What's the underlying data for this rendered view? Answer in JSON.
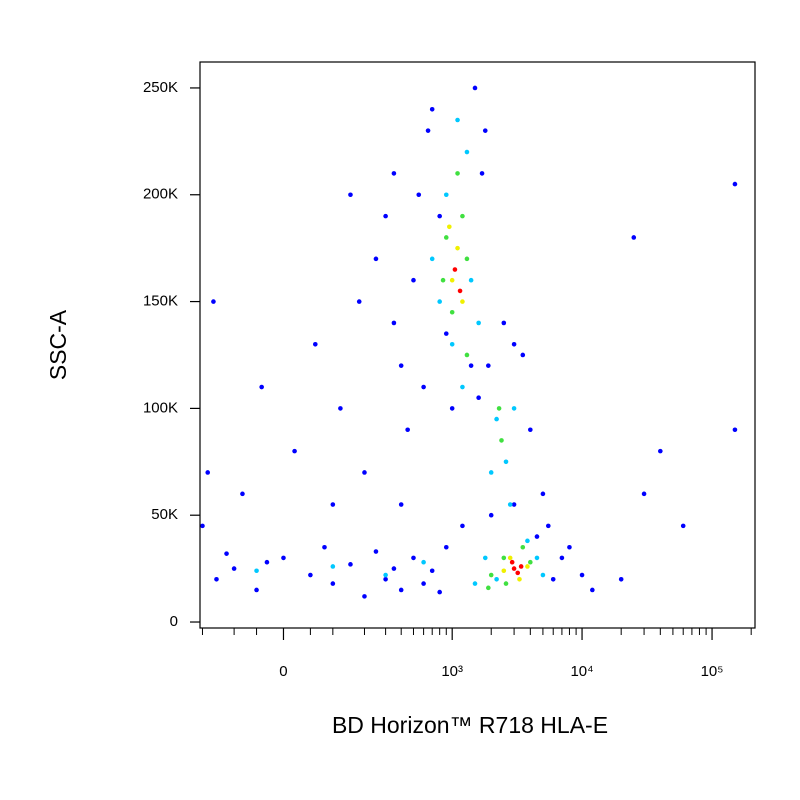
{
  "chart_data": {
    "type": "scatter",
    "x_label": "BD Horizon™ R718 HLA-E",
    "y_label": "SSC-A",
    "xscale": {
      "type": "arcsinh",
      "cofactor": 101
    },
    "xlim": [
      -210,
      214000
    ],
    "ylim": [
      -2800,
      262144
    ],
    "xticks": [
      {
        "value": 0,
        "label": "0"
      },
      {
        "value": 1000,
        "label": "10³"
      },
      {
        "value": 10000,
        "label": "10⁴"
      },
      {
        "value": 100000,
        "label": "10⁵"
      }
    ],
    "xminorticks": [
      -200,
      -100,
      -50,
      50,
      100,
      200,
      300,
      400,
      500,
      600,
      700,
      800,
      900,
      2000,
      3000,
      4000,
      5000,
      6000,
      7000,
      8000,
      9000,
      20000,
      30000,
      40000,
      50000,
      60000,
      70000,
      80000,
      90000,
      200000
    ],
    "yticks": [
      {
        "value": 0,
        "label": "0"
      },
      {
        "value": 50000,
        "label": "50K"
      },
      {
        "value": 100000,
        "label": "100K"
      },
      {
        "value": 150000,
        "label": "150K"
      },
      {
        "value": 200000,
        "label": "200K"
      },
      {
        "value": 250000,
        "label": "250K"
      }
    ],
    "series": [
      {
        "color": "#0000ff",
        "x": [
          -150,
          -100,
          -50,
          0,
          50,
          100,
          150,
          200,
          250,
          300,
          350,
          400,
          -120,
          -30,
          80,
          500,
          600,
          700,
          800,
          900,
          -80,
          20,
          120,
          60,
          180,
          250,
          300,
          350,
          400,
          450,
          200,
          100,
          -40,
          150,
          350,
          500,
          550,
          600,
          650,
          700,
          1500,
          1800,
          1400,
          1600,
          1900,
          3500,
          4000,
          5000,
          5500,
          7000,
          8000,
          6000,
          10000,
          12000,
          20000,
          40000,
          60000,
          150000,
          150000,
          30000,
          25000,
          -200,
          -180,
          -160,
          400,
          1200,
          2000,
          1000,
          3000,
          1700,
          800,
          900,
          3000,
          4500,
          2500
        ],
        "values": [
          20000,
          25000,
          15000,
          30000,
          22000,
          18000,
          27000,
          12000,
          33000,
          20000,
          25000,
          15000,
          32000,
          28000,
          35000,
          30000,
          18000,
          24000,
          14000,
          35000,
          60000,
          80000,
          100000,
          130000,
          150000,
          170000,
          190000,
          140000,
          120000,
          90000,
          70000,
          55000,
          110000,
          200000,
          210000,
          160000,
          200000,
          110000,
          230000,
          240000,
          250000,
          230000,
          120000,
          105000,
          120000,
          125000,
          90000,
          60000,
          45000,
          30000,
          35000,
          20000,
          22000,
          15000,
          20000,
          80000,
          45000,
          90000,
          205000,
          60000,
          180000,
          45000,
          70000,
          150000,
          55000,
          45000,
          50000,
          100000,
          130000,
          210000,
          190000,
          135000,
          55000,
          40000,
          140000
        ]
      },
      {
        "color": "#00c8ff",
        "x": [
          900,
          1300,
          1000,
          1400,
          700,
          1100,
          2200,
          2600,
          3000,
          2000,
          2800,
          1800,
          2200,
          4500,
          5000,
          1500,
          3800,
          1200,
          1600,
          800,
          -50,
          100,
          300,
          600
        ],
        "values": [
          200000,
          220000,
          130000,
          160000,
          170000,
          235000,
          95000,
          75000,
          100000,
          70000,
          55000,
          30000,
          20000,
          30000,
          22000,
          18000,
          38000,
          110000,
          140000,
          150000,
          24000,
          26000,
          22000,
          28000
        ]
      },
      {
        "color": "#40e040",
        "x": [
          900,
          1200,
          1000,
          1300,
          1100,
          850,
          2400,
          2300,
          2000,
          2600,
          4000,
          3500,
          2500,
          1900,
          1300
        ],
        "values": [
          180000,
          190000,
          145000,
          170000,
          210000,
          160000,
          85000,
          100000,
          22000,
          18000,
          28000,
          35000,
          30000,
          16000,
          125000
        ]
      },
      {
        "color": "#f0f000",
        "x": [
          1000,
          1100,
          1200,
          950,
          2800,
          3300,
          2500,
          3800
        ],
        "values": [
          160000,
          175000,
          150000,
          185000,
          30000,
          20000,
          24000,
          26000
        ]
      },
      {
        "color": "#ff0000",
        "x": [
          1050,
          1150,
          3000,
          3200,
          2900,
          3400
        ],
        "values": [
          165000,
          155000,
          25000,
          23000,
          28000,
          26000
        ]
      }
    ]
  }
}
